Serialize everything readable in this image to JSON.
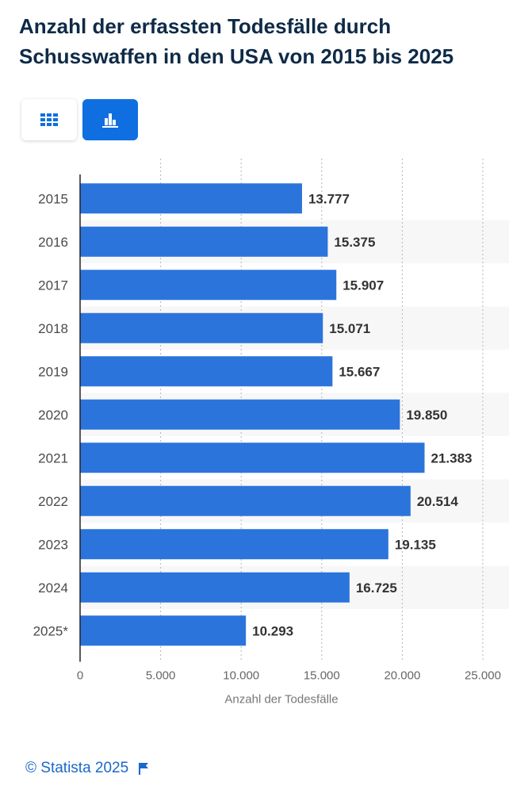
{
  "title": "Anzahl der erfassten Todesfälle durch Schusswaffen in den USA von 2015 bis 2025",
  "toggles": [
    {
      "icon": "table-grid-icon",
      "active": false
    },
    {
      "icon": "bar-chart-icon",
      "active": true
    }
  ],
  "footer": {
    "copyright": "© Statista 2025",
    "icon": "flag-icon"
  },
  "colors": {
    "bar": "#2b74dc",
    "title": "#0e2a47",
    "accent": "#0f6fe0",
    "footer": "#1a68c9"
  },
  "chart_data": {
    "type": "bar",
    "orientation": "horizontal",
    "categories": [
      "2015",
      "2016",
      "2017",
      "2018",
      "2019",
      "2020",
      "2021",
      "2022",
      "2023",
      "2024",
      "2025*"
    ],
    "values": [
      13777,
      15375,
      15907,
      15071,
      15667,
      19850,
      21383,
      20514,
      19135,
      16725,
      10293
    ],
    "value_labels": [
      "13.777",
      "15.375",
      "15.907",
      "15.071",
      "15.667",
      "19.850",
      "21.383",
      "20.514",
      "19.135",
      "16.725",
      "10.293"
    ],
    "xticks": [
      0,
      5000,
      10000,
      15000,
      20000,
      25000
    ],
    "xtick_labels": [
      "0",
      "5.000",
      "10.000",
      "15.000",
      "20.000",
      "25.000"
    ],
    "xlim": [
      0,
      25000
    ],
    "xlabel": "Anzahl der Todesfälle",
    "ylabel": "",
    "grid": true,
    "legend": false
  }
}
